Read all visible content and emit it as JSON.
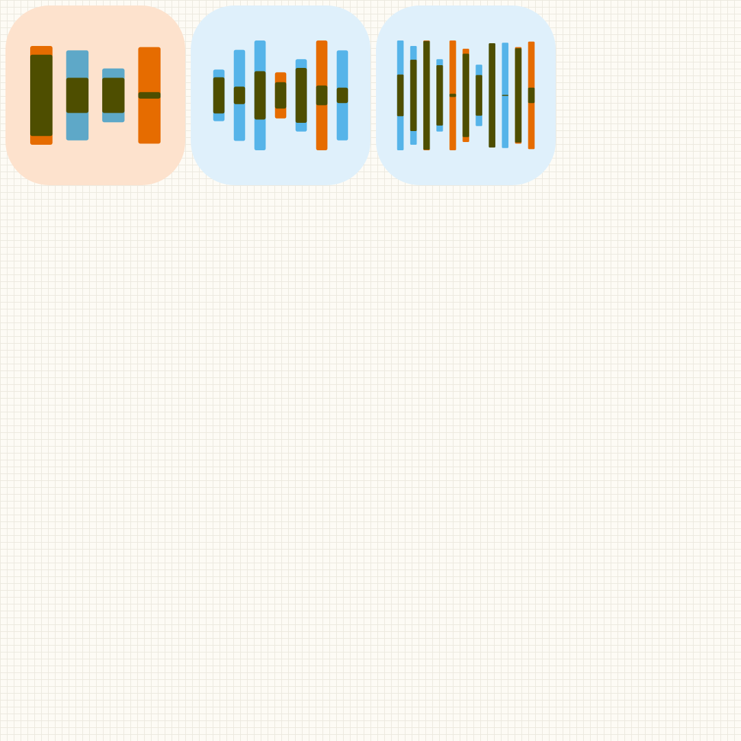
{
  "palette": {
    "tile_orange": "#fde2cd",
    "tile_blue": "#dff0fb",
    "bar_orange": "#e66c00",
    "bar_blue": "#56b4e9",
    "bar_steel": "#5ea8c8",
    "bar_dark": "#4e4e00"
  },
  "tiles": [
    {
      "bg": "tile_orange",
      "bars": [
        {
          "o": 0.9,
          "i": 0.74,
          "c": "bar_orange"
        },
        {
          "o": 0.82,
          "i": 0.32,
          "c": "bar_steel"
        },
        {
          "o": 0.49,
          "i": 0.32,
          "c": "bar_steel"
        },
        {
          "o": 0.88,
          "i": 0.06,
          "c": "bar_orange"
        }
      ]
    },
    {
      "bg": "tile_blue",
      "bars": [
        {
          "o": 0.47,
          "i": 0.33,
          "c": "bar_blue"
        },
        {
          "o": 0.83,
          "i": 0.16,
          "c": "bar_blue"
        },
        {
          "o": 1.0,
          "i": 0.44,
          "c": "bar_blue"
        },
        {
          "o": 0.42,
          "i": 0.24,
          "c": "bar_orange"
        },
        {
          "o": 0.66,
          "i": 0.5,
          "c": "bar_blue"
        },
        {
          "o": 1.0,
          "i": 0.18,
          "c": "bar_orange"
        },
        {
          "o": 0.82,
          "i": 0.14,
          "c": "bar_blue"
        }
      ]
    },
    {
      "bg": "tile_blue",
      "bars": [
        {
          "o": 1.0,
          "i": 0.38,
          "c": "bar_blue"
        },
        {
          "o": 0.9,
          "i": 0.65,
          "c": "bar_blue"
        },
        {
          "o": 1.0,
          "i": 0.99,
          "c": "bar_orange"
        },
        {
          "o": 0.66,
          "i": 0.55,
          "c": "bar_blue"
        },
        {
          "o": 1.0,
          "i": 0.03,
          "c": "bar_orange"
        },
        {
          "o": 0.85,
          "i": 0.76,
          "c": "bar_orange"
        },
        {
          "o": 0.56,
          "i": 0.37,
          "c": "bar_blue"
        },
        {
          "o": 0.95,
          "i": 0.95,
          "c": "bar_blue"
        },
        {
          "o": 0.96,
          "i": 0.01,
          "c": "bar_blue"
        },
        {
          "o": 0.88,
          "i": 0.86,
          "c": "bar_orange"
        },
        {
          "o": 0.98,
          "i": 0.14,
          "c": "bar_orange"
        }
      ]
    }
  ]
}
